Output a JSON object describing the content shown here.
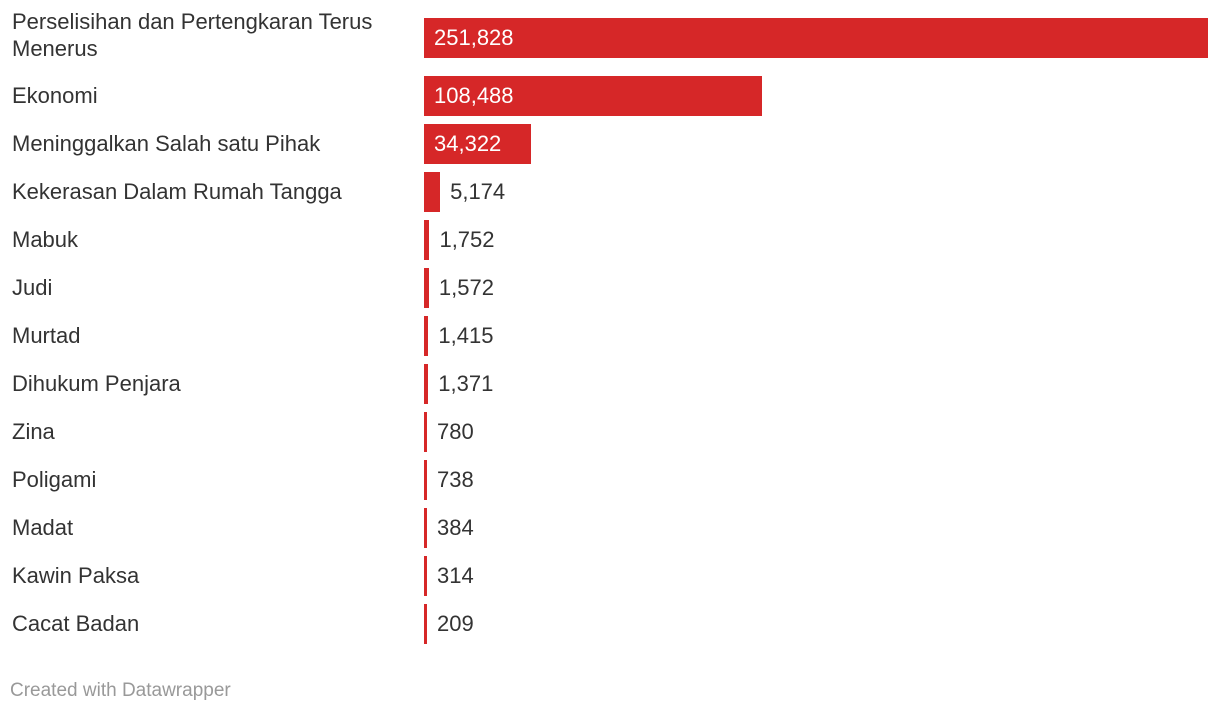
{
  "chart_data": {
    "type": "bar",
    "orientation": "horizontal",
    "categories": [
      "Perselisihan dan Pertengkaran Terus Menerus",
      "Ekonomi",
      "Meninggalkan Salah satu Pihak",
      "Kekerasan Dalam Rumah Tangga",
      "Mabuk",
      "Judi",
      "Murtad",
      "Dihukum Penjara",
      "Zina",
      "Poligami",
      "Madat",
      "Kawin Paksa",
      "Cacat Badan"
    ],
    "values": [
      251828,
      108488,
      34322,
      5174,
      1752,
      1572,
      1415,
      1371,
      780,
      738,
      384,
      314,
      209
    ],
    "value_labels": [
      "251,828",
      "108,488",
      "34,322",
      "5,174",
      "1,752",
      "1,572",
      "1,415",
      "1,371",
      "780",
      "738",
      "384",
      "314",
      "209"
    ],
    "xlim": [
      0,
      251828
    ],
    "grid": false,
    "bar_color": "#d62728"
  },
  "footer": {
    "credit": "Created with Datawrapper"
  }
}
